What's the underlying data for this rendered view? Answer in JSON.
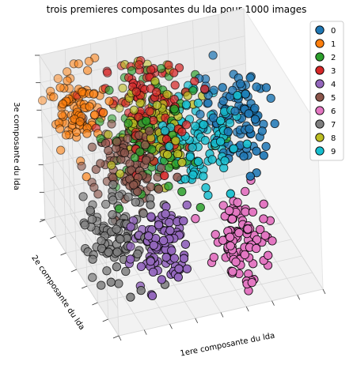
{
  "chart_data": {
    "type": "scatter",
    "title": "trois premieres composantes du lda pour 1000 images",
    "xlabel": "1ere composante du lda",
    "ylabel": "2e composante du lda",
    "zlabel": "3e composante du lda",
    "tick_labels_shown": false,
    "grid": true,
    "legend_position": "top-right",
    "marker": "circle, black edge",
    "series": [
      {
        "name": "0",
        "color": "#1f77b4",
        "centroid": [
          7.0,
          1.0,
          1.0
        ],
        "spread": [
          1.4,
          1.3,
          1.2
        ],
        "count": 100
      },
      {
        "name": "1",
        "color": "#ff7f0e",
        "centroid": [
          -4.0,
          3.5,
          2.0
        ],
        "spread": [
          1.0,
          1.0,
          0.9
        ],
        "count": 100
      },
      {
        "name": "2",
        "color": "#2ca02c",
        "centroid": [
          0.5,
          2.0,
          0.5
        ],
        "spread": [
          1.8,
          1.6,
          1.5
        ],
        "count": 100
      },
      {
        "name": "3",
        "color": "#d62728",
        "centroid": [
          0.5,
          2.5,
          2.0
        ],
        "spread": [
          1.6,
          1.4,
          1.2
        ],
        "count": 100
      },
      {
        "name": "4",
        "color": "#9467bd",
        "centroid": [
          -1.0,
          -3.5,
          -2.5
        ],
        "spread": [
          1.2,
          1.1,
          1.0
        ],
        "count": 100
      },
      {
        "name": "5",
        "color": "#8c564b",
        "centroid": [
          -1.5,
          1.0,
          -0.5
        ],
        "spread": [
          1.3,
          1.3,
          1.2
        ],
        "count": 100
      },
      {
        "name": "6",
        "color": "#e377c2",
        "centroid": [
          5.0,
          -4.0,
          -3.0
        ],
        "spread": [
          1.1,
          1.1,
          1.0
        ],
        "count": 100
      },
      {
        "name": "7",
        "color": "#7f7f7f",
        "centroid": [
          -3.5,
          -1.5,
          -2.5
        ],
        "spread": [
          1.2,
          1.2,
          1.0
        ],
        "count": 100
      },
      {
        "name": "8",
        "color": "#bcbd22",
        "centroid": [
          1.0,
          1.5,
          1.0
        ],
        "spread": [
          1.5,
          1.5,
          1.3
        ],
        "count": 100
      },
      {
        "name": "9",
        "color": "#17becf",
        "centroid": [
          4.0,
          0.5,
          0.5
        ],
        "spread": [
          1.4,
          1.3,
          1.2
        ],
        "count": 100
      }
    ],
    "axis_ranges": {
      "x": [
        -6,
        10
      ],
      "y": [
        -7,
        6
      ],
      "z": [
        -5,
        4
      ]
    }
  }
}
